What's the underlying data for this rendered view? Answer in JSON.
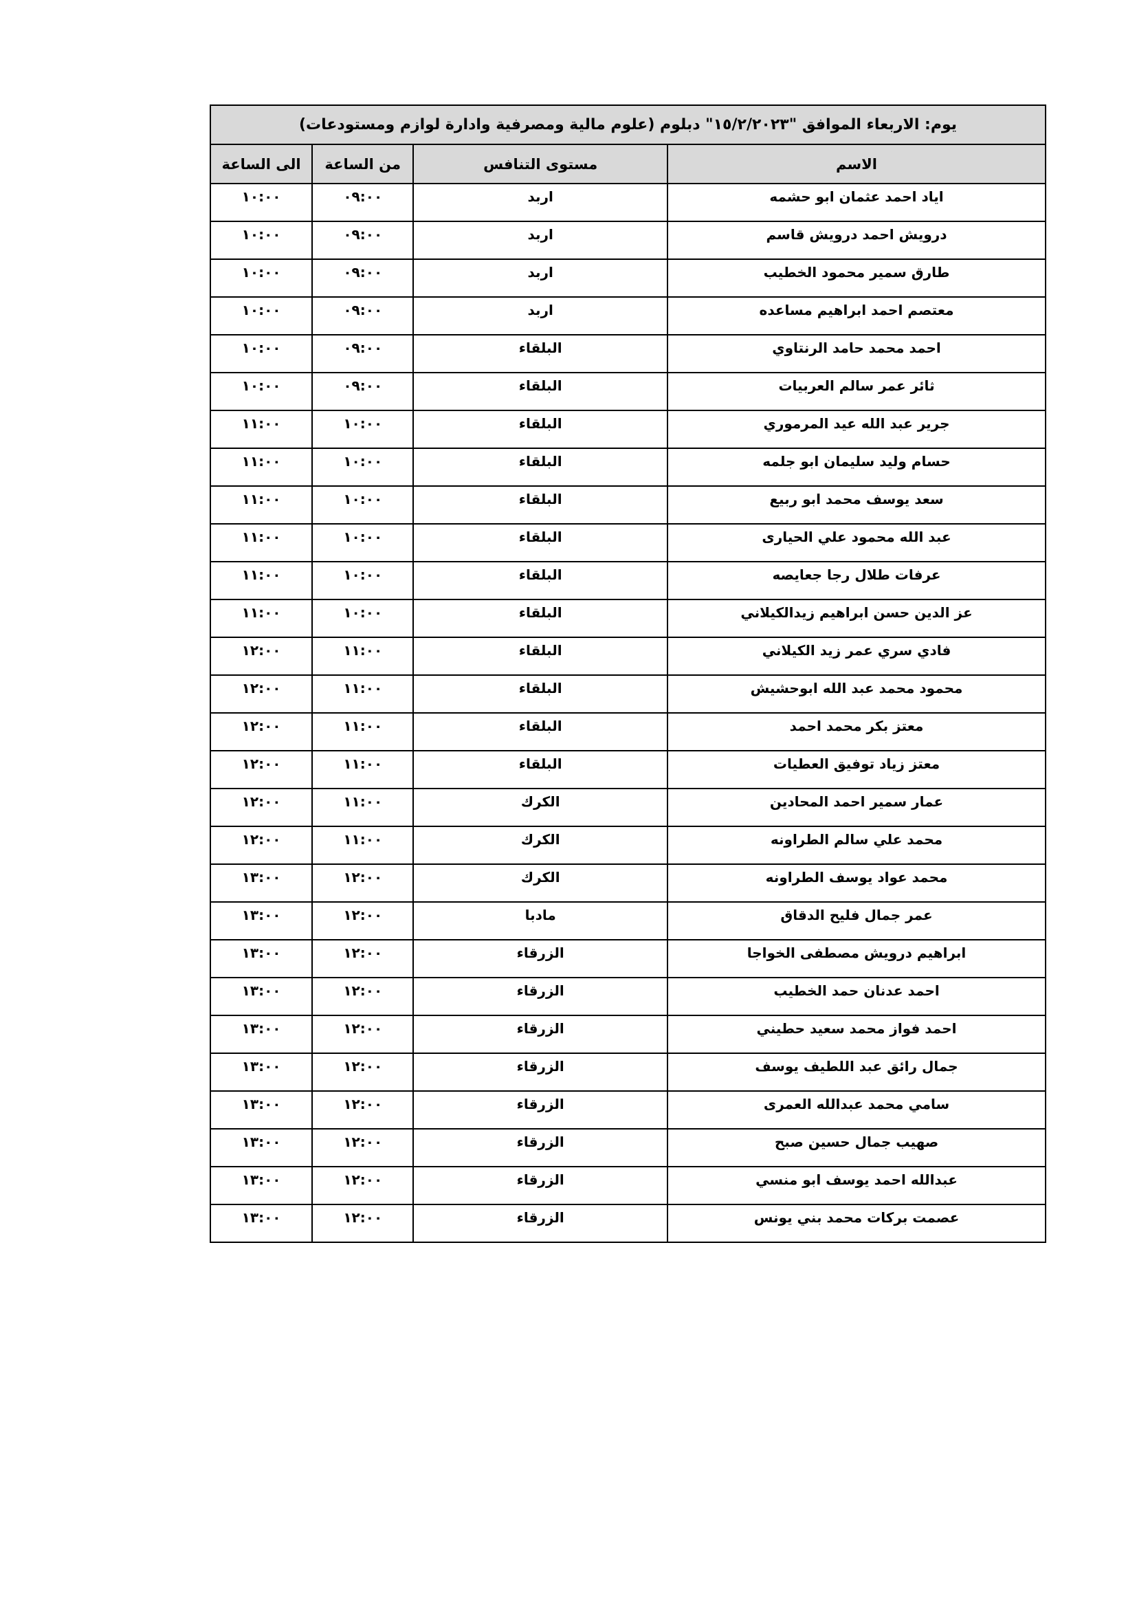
{
  "title": "يوم: الاربعاء  الموافق \"١٥/٢/٢٠٢٣\" دبلوم (علوم مالية ومصرفية وادارة لوازم ومستودعات)",
  "headers": {
    "name": "الاسم",
    "level": "مستوى التنافس",
    "from": "من الساعة",
    "to": "الى الساعة"
  },
  "rows": [
    {
      "name": "اياد احمد عثمان ابو حشمه",
      "level": "اربد",
      "from": "٠٩:٠٠",
      "to": "١٠:٠٠"
    },
    {
      "name": "درويش احمد درويش قاسم",
      "level": "اربد",
      "from": "٠٩:٠٠",
      "to": "١٠:٠٠"
    },
    {
      "name": "طارق سمير محمود الخطيب",
      "level": "اربد",
      "from": "٠٩:٠٠",
      "to": "١٠:٠٠"
    },
    {
      "name": "معتصم احمد ابراهيم مساعده",
      "level": "اربد",
      "from": "٠٩:٠٠",
      "to": "١٠:٠٠"
    },
    {
      "name": "احمد محمد حامد الرنتاوي",
      "level": "البلقاء",
      "from": "٠٩:٠٠",
      "to": "١٠:٠٠"
    },
    {
      "name": "ثائر عمر سالم العربيات",
      "level": "البلقاء",
      "from": "٠٩:٠٠",
      "to": "١٠:٠٠"
    },
    {
      "name": "جرير عبد الله عيد المرموري",
      "level": "البلقاء",
      "from": "١٠:٠٠",
      "to": "١١:٠٠"
    },
    {
      "name": "حسام وليد سليمان ابو جلمه",
      "level": "البلقاء",
      "from": "١٠:٠٠",
      "to": "١١:٠٠"
    },
    {
      "name": "سعد يوسف محمد ابو ربيع",
      "level": "البلقاء",
      "from": "١٠:٠٠",
      "to": "١١:٠٠"
    },
    {
      "name": "عبد الله محمود علي الحيارى",
      "level": "البلقاء",
      "from": "١٠:٠٠",
      "to": "١١:٠٠"
    },
    {
      "name": "عرفات طلال رجا جعايصه",
      "level": "البلقاء",
      "from": "١٠:٠٠",
      "to": "١١:٠٠"
    },
    {
      "name": "عز الدين حسن ابراهيم زيدالكيلاني",
      "level": "البلقاء",
      "from": "١٠:٠٠",
      "to": "١١:٠٠"
    },
    {
      "name": "فادي سري عمر زيد الكيلاني",
      "level": "البلقاء",
      "from": "١١:٠٠",
      "to": "١٢:٠٠"
    },
    {
      "name": "محمود محمد عبد الله ابوحشيش",
      "level": "البلقاء",
      "from": "١١:٠٠",
      "to": "١٢:٠٠"
    },
    {
      "name": "معتز بكر محمد احمد",
      "level": "البلقاء",
      "from": "١١:٠٠",
      "to": "١٢:٠٠"
    },
    {
      "name": "معتز زياد توفيق العطيات",
      "level": "البلقاء",
      "from": "١١:٠٠",
      "to": "١٢:٠٠"
    },
    {
      "name": "عمار سمير احمد المحادين",
      "level": "الكرك",
      "from": "١١:٠٠",
      "to": "١٢:٠٠"
    },
    {
      "name": "محمد علي سالم الطراونه",
      "level": "الكرك",
      "from": "١١:٠٠",
      "to": "١٢:٠٠"
    },
    {
      "name": "محمد عواد يوسف الطراونه",
      "level": "الكرك",
      "from": "١٢:٠٠",
      "to": "١٣:٠٠"
    },
    {
      "name": "عمر جمال فليح الدقاق",
      "level": "مادبا",
      "from": "١٢:٠٠",
      "to": "١٣:٠٠"
    },
    {
      "name": "ابراهيم درويش مصطفى الخواجا",
      "level": "الزرقاء",
      "from": "١٢:٠٠",
      "to": "١٣:٠٠"
    },
    {
      "name": "احمد عدنان حمد الخطيب",
      "level": "الزرقاء",
      "from": "١٢:٠٠",
      "to": "١٣:٠٠"
    },
    {
      "name": "احمد فواز محمد سعيد حطيني",
      "level": "الزرقاء",
      "from": "١٢:٠٠",
      "to": "١٣:٠٠"
    },
    {
      "name": "جمال رائق عبد اللطيف يوسف",
      "level": "الزرقاء",
      "from": "١٢:٠٠",
      "to": "١٣:٠٠"
    },
    {
      "name": "سامي محمد عبدالله العمرى",
      "level": "الزرقاء",
      "from": "١٢:٠٠",
      "to": "١٣:٠٠"
    },
    {
      "name": "صهيب جمال حسين صبح",
      "level": "الزرقاء",
      "from": "١٢:٠٠",
      "to": "١٣:٠٠"
    },
    {
      "name": "عبدالله احمد يوسف ابو منسي",
      "level": "الزرقاء",
      "from": "١٢:٠٠",
      "to": "١٣:٠٠"
    },
    {
      "name": "عصمت بركات محمد بني  يونس",
      "level": "الزرقاء",
      "from": "١٢:٠٠",
      "to": "١٣:٠٠"
    }
  ]
}
